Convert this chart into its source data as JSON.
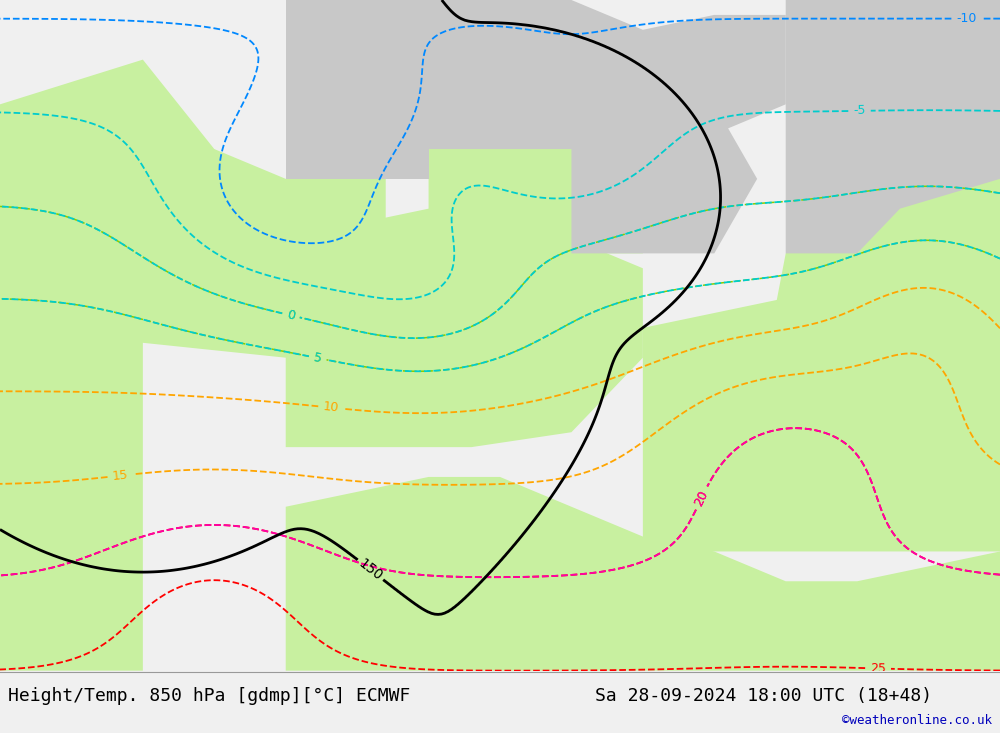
{
  "title_left": "Height/Temp. 850 hPa [gdmp][°C] ECMWF",
  "title_right": "Sa 28-09-2024 18:00 UTC (18+48)",
  "watermark": "©weatheronline.co.uk",
  "sea_color": "#e8e8e8",
  "land_warm_color": "#c8f0a0",
  "land_cool_color": "#c8c8c8",
  "bottom_bar_color": "#f0f0f0",
  "contour_height_color": "#000000",
  "contour_temp_orange_color": "#ffa500",
  "contour_temp_red_color": "#ff0000",
  "contour_temp_pink_color": "#ff00aa",
  "contour_temp_cyan_color": "#00cccc",
  "contour_temp_blue_color": "#0088ff",
  "contour_temp_lime_color": "#88cc00",
  "watermark_color": "#0000bb",
  "title_fontsize": 13
}
